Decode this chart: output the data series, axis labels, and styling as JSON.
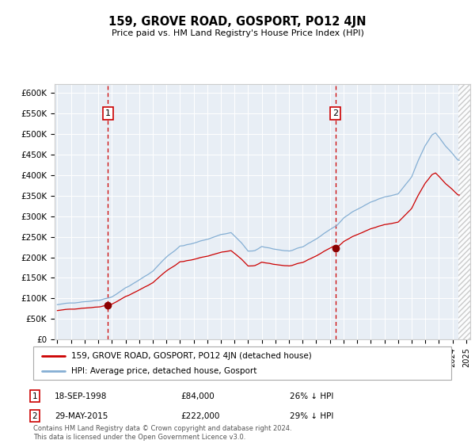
{
  "title": "159, GROVE ROAD, GOSPORT, PO12 4JN",
  "subtitle": "Price paid vs. HM Land Registry's House Price Index (HPI)",
  "legend_entries": [
    "159, GROVE ROAD, GOSPORT, PO12 4JN (detached house)",
    "HPI: Average price, detached house, Gosport"
  ],
  "sale_color": "#cc0000",
  "hpi_color": "#85afd4",
  "annotation_box_color": "#cc0000",
  "vline_color": "#cc0000",
  "plot_bg_color": "#e8eef5",
  "grid_color": "#ffffff",
  "sale1_x": 1998.72,
  "sale1_y": 84000,
  "sale1_label": "1",
  "sale1_date": "18-SEP-1998",
  "sale1_price": "£84,000",
  "sale1_hpi": "26% ↓ HPI",
  "sale2_x": 2015.41,
  "sale2_y": 222000,
  "sale2_label": "2",
  "sale2_date": "29-MAY-2015",
  "sale2_price": "£222,000",
  "sale2_hpi": "29% ↓ HPI",
  "footer": "Contains HM Land Registry data © Crown copyright and database right 2024.\nThis data is licensed under the Open Government Licence v3.0.",
  "sale_years": [
    1998.72,
    2015.41
  ],
  "sale_values": [
    84000,
    222000
  ],
  "xmin": 1994.8,
  "xmax": 2025.3,
  "ylim": [
    0,
    620000
  ],
  "yticks": [
    0,
    50000,
    100000,
    150000,
    200000,
    250000,
    300000,
    350000,
    400000,
    450000,
    500000,
    550000,
    600000
  ],
  "ytick_labels": [
    "£0",
    "£50K",
    "£100K",
    "£150K",
    "£200K",
    "£250K",
    "£300K",
    "£350K",
    "£400K",
    "£450K",
    "£500K",
    "£550K",
    "£600K"
  ],
  "hatch_start": 2024.4,
  "hatch_end": 2025.5
}
